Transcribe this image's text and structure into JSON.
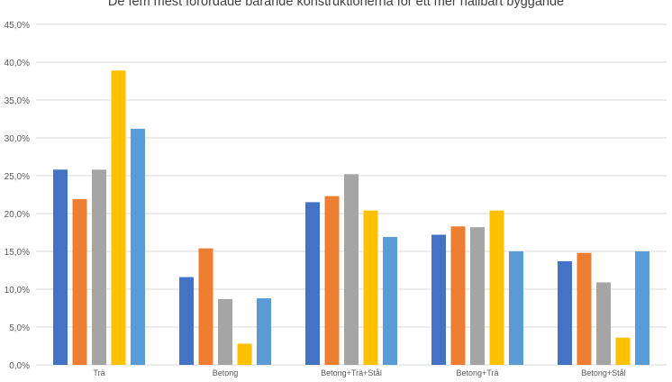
{
  "chart_data": {
    "type": "bar",
    "title": "De fem mest förordade bärande konstruktionerna för ett mer hållbart byggande",
    "xlabel": "",
    "ylabel": "",
    "categories": [
      "Trä",
      "Betong",
      "Betong+Trä+Stål",
      "Betong+Trä",
      "Betong+Stål"
    ],
    "series": [
      {
        "color": "#4472C4",
        "values": [
          25.8,
          11.6,
          21.5,
          17.2,
          13.7
        ]
      },
      {
        "color": "#ED7D31",
        "values": [
          21.9,
          15.4,
          22.3,
          18.3,
          14.8
        ]
      },
      {
        "color": "#A5A5A5",
        "values": [
          25.8,
          8.7,
          25.2,
          18.2,
          10.9
        ]
      },
      {
        "color": "#FFC000",
        "values": [
          38.9,
          2.8,
          20.4,
          20.4,
          3.6
        ]
      },
      {
        "color": "#5B9BD5",
        "values": [
          31.2,
          8.8,
          16.9,
          15.0,
          15.0
        ]
      }
    ],
    "ylim": [
      0,
      45
    ],
    "yticks": [
      "0,0%",
      "5,0%",
      "10,0%",
      "15,0%",
      "20,0%",
      "25,0%",
      "30,0%",
      "35,0%",
      "40,0%",
      "45,0%"
    ],
    "grid": true,
    "legend": "none"
  }
}
